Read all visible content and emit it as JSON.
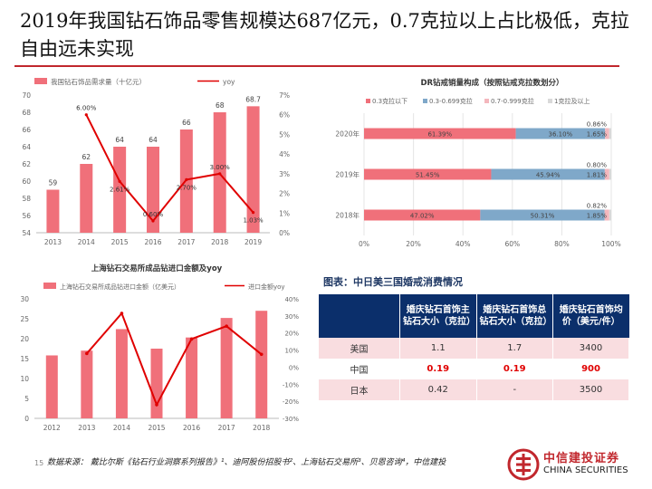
{
  "title": "2019年我国钻石饰品零售规模达687亿元，0.7克拉以上占比极低，克拉自由远未实现",
  "colors": {
    "accent": "#c1272d",
    "bar": "#f0707a",
    "line": "#e00000",
    "blue": "#7fa8c9",
    "header": "#0b2f6b"
  },
  "chart_data": [
    {
      "type": "bar+line",
      "categories": [
        "2013",
        "2014",
        "2015",
        "2016",
        "2017",
        "2018",
        "2019"
      ],
      "series": [
        {
          "name": "我国钻石饰品需求量（十亿元）",
          "values": [
            59,
            62,
            64,
            64,
            66,
            68,
            68.7
          ],
          "labels": [
            "59",
            "62",
            "64",
            "64",
            "66",
            "68",
            "68.7"
          ],
          "axis": "left"
        },
        {
          "name": "yoy",
          "values": [
            null,
            6.0,
            2.61,
            0.6,
            2.7,
            3.0,
            1.03
          ],
          "labels": [
            "",
            "6.00%",
            "2.61%",
            "0.60%",
            "2.70%",
            "3.00%",
            "1.03%"
          ],
          "axis": "right"
        }
      ],
      "ylim": [
        54,
        70
      ],
      "y_ticks": [
        "54",
        "56",
        "58",
        "60",
        "62",
        "64",
        "66",
        "68",
        "70"
      ],
      "y2lim": [
        0,
        7
      ],
      "y2_ticks": [
        "0%",
        "1%",
        "2%",
        "3%",
        "4%",
        "5%",
        "6%",
        "7%"
      ],
      "legend": "top",
      "grid": false
    },
    {
      "type": "stacked-bar-horizontal",
      "title": "DR钻戒销量构成（按照钻戒克拉数划分）",
      "categories": [
        "2020年",
        "2019年",
        "2018年"
      ],
      "series": [
        {
          "name": "0.3克拉以下",
          "values": [
            61.39,
            51.45,
            47.02
          ],
          "labels": [
            "61.39%",
            "51.45%",
            "47.02%"
          ]
        },
        {
          "name": "0.3-0.699克拉",
          "values": [
            36.1,
            45.94,
            50.31
          ],
          "labels": [
            "36.10%",
            "45.94%",
            "50.31%"
          ]
        },
        {
          "name": "0.7-0.999克拉",
          "values": [
            1.65,
            1.81,
            1.85
          ],
          "labels": [
            "1.65%",
            "1.81%",
            "1.85%"
          ]
        },
        {
          "name": "1克拉及以上",
          "values": [
            0.86,
            0.8,
            0.82
          ],
          "labels": [
            "0.86%",
            "0.80%",
            "0.82%"
          ]
        }
      ],
      "xlim": [
        0,
        100
      ],
      "x_ticks": [
        "0%",
        "20%",
        "40%",
        "60%",
        "80%",
        "100%"
      ],
      "legend": "top",
      "grid": true
    },
    {
      "type": "bar+line",
      "title": "上海钻石交易所成品钻进口金额及yoy",
      "categories": [
        "2012",
        "2013",
        "2014",
        "2015",
        "2016",
        "2017",
        "2018"
      ],
      "series": [
        {
          "name": "上海钻石交易所成品钻进口金额（亿美元）",
          "values": [
            15.8,
            17.0,
            22.4,
            17.5,
            20.3,
            25.2,
            27.0
          ],
          "axis": "left"
        },
        {
          "name": "进口金额yoy",
          "values": [
            null,
            8.0,
            31.5,
            -22.0,
            16.5,
            24.0,
            7.5
          ],
          "axis": "right"
        }
      ],
      "ylim": [
        0,
        30
      ],
      "y_ticks": [
        "0",
        "5",
        "10",
        "15",
        "20",
        "25",
        "30"
      ],
      "y2lim": [
        -30,
        40
      ],
      "y2_ticks": [
        "-30%",
        "-20%",
        "-10%",
        "0%",
        "10%",
        "20%",
        "30%",
        "40%"
      ],
      "legend": "top",
      "grid": false
    }
  ],
  "table": {
    "title": "图表：中日美三国婚戒消费情况",
    "headers": [
      "",
      "婚庆钻石首饰主钻石大小（克拉）",
      "婚庆钻石首饰总钻石大小（克拉）",
      "婚庆钻石首饰均价（美元/件）"
    ],
    "rows": [
      {
        "country": "美国",
        "main": "1.1",
        "total": "1.7",
        "price": "3400"
      },
      {
        "country": "中国",
        "main": "0.19",
        "total": "0.19",
        "price": "900"
      },
      {
        "country": "日本",
        "main": "0.42",
        "total": "-",
        "price": "3500"
      }
    ]
  },
  "source": "数据来源：  戴比尔斯《钻石行业洞察系列报告》¹、迪阿股份招股书²、上海钻石交易所³、贝恩咨询⁴，中信建投",
  "page_number": "15",
  "logo": {
    "cn": "中信建投证券",
    "en": "CHINA SECURITIES"
  }
}
